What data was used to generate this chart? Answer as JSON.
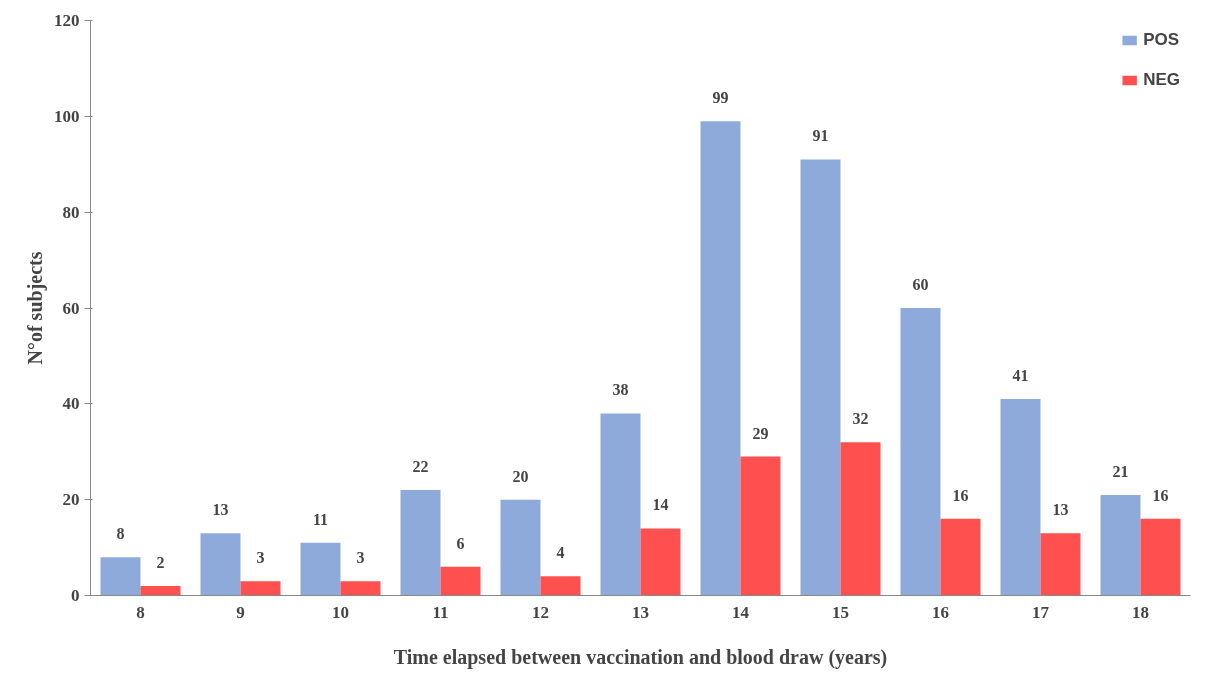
{
  "chart_data": {
    "type": "bar",
    "xlabel": "Time elapsed between vaccination and blood draw (years)",
    "ylabel": "N°of subjects",
    "categories": [
      "8",
      "9",
      "10",
      "11",
      "12",
      "13",
      "14",
      "15",
      "16",
      "17",
      "18"
    ],
    "series": [
      {
        "name": "POS",
        "color": "#8eaadb",
        "values": [
          8,
          13,
          11,
          22,
          20,
          38,
          99,
          91,
          60,
          41,
          21
        ]
      },
      {
        "name": "NEG",
        "color": "#ff5050",
        "values": [
          2,
          3,
          3,
          6,
          4,
          14,
          29,
          32,
          16,
          13,
          16
        ]
      }
    ],
    "ylim": [
      0,
      120
    ],
    "yticks": [
      0,
      20,
      40,
      60,
      80,
      100,
      120
    ],
    "grid": false,
    "legend": "top right",
    "data_labels": true
  }
}
